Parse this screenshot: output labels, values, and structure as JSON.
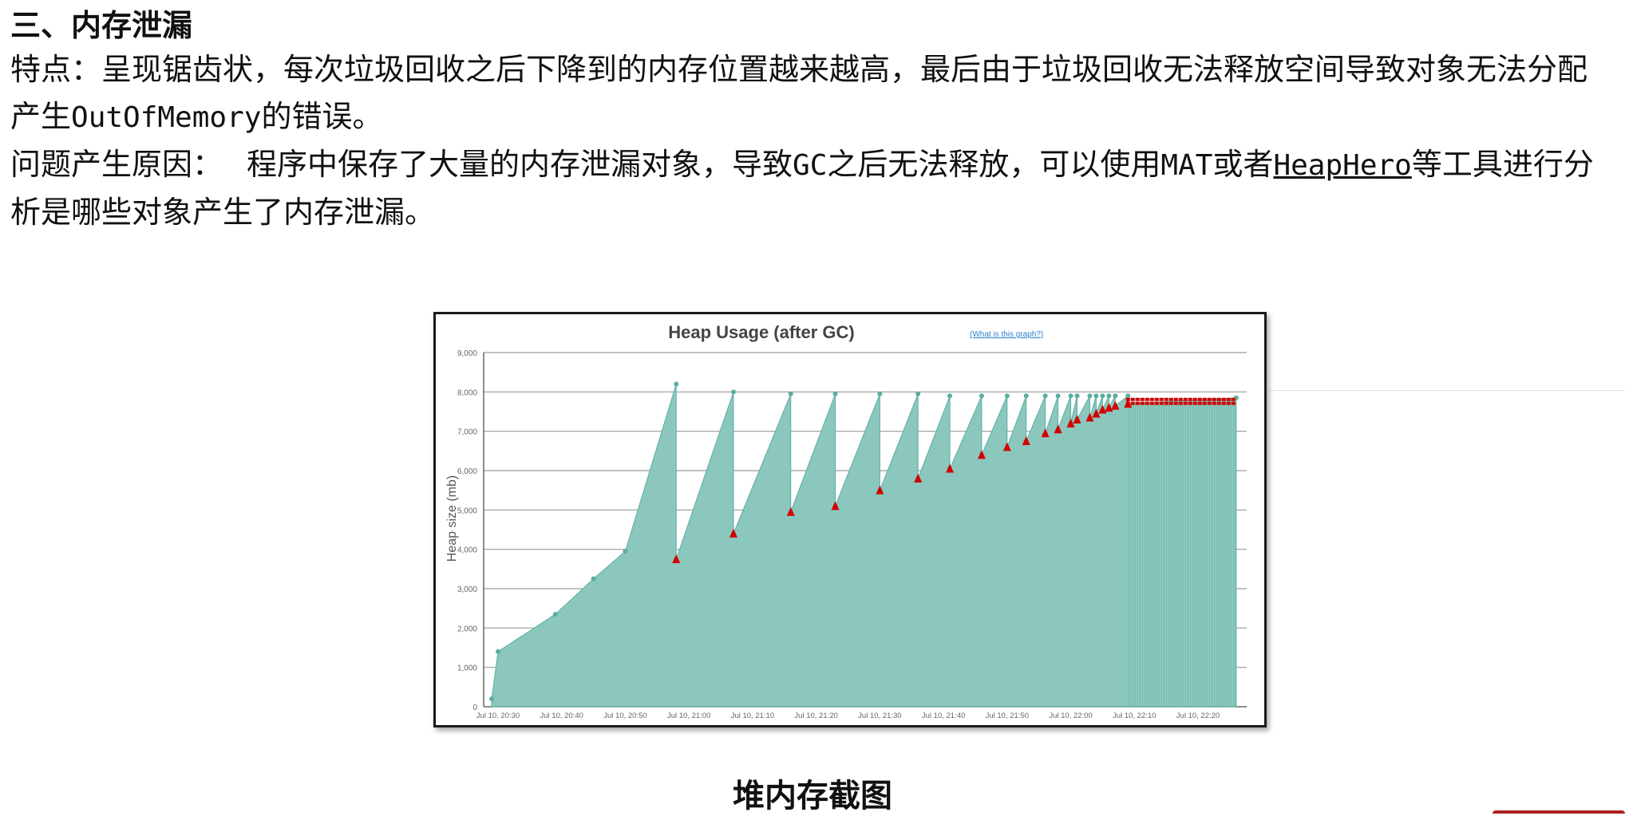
{
  "section": {
    "title": "三、内存泄漏",
    "features_line": "特点：呈现锯齿状，每次垃圾回收之后下降到的内存位置越来越高，最后由于垃圾回收无法释放空间导致对象无法分配产生",
    "features_code": "OutOfMemory",
    "features_end": "的错误。",
    "cause_label": "问题产生原因：",
    "cause_text_1": "程序中保存了大量的内存泄漏对象，导致",
    "cause_gc": "GC",
    "cause_text_2": "之后无法释放，可以使用",
    "cause_mat": "MAT",
    "cause_text_3": "或者",
    "cause_link": "HeapHero",
    "cause_text_4": "等工具进行分析是哪些对象产生了内存泄漏。"
  },
  "figure": {
    "caption": "堆内存截图",
    "colors": {
      "area": "#8bc7bd",
      "area_stroke": "#5aaea0",
      "marker": "#d40000",
      "grid": "#9a9a9a"
    }
  },
  "chart_data": {
    "type": "area",
    "title": "Heap Usage (after GC)",
    "help_link": "(What is this graph?)",
    "ylabel": "Heap size (mb)",
    "xlabel": "",
    "ylim": [
      0,
      9000
    ],
    "grid": true,
    "y_ticks": [
      "0",
      "1,000",
      "2,000",
      "3,000",
      "4,000",
      "5,000",
      "6,000",
      "7,000",
      "8,000",
      "9,000"
    ],
    "x_ticks": [
      "Jul 10, 20:30",
      "Jul 10, 20:40",
      "Jul 10, 20:50",
      "Jul 10, 21:00",
      "Jul 10, 21:10",
      "Jul 10, 21:20",
      "Jul 10, 21:30",
      "Jul 10, 21:40",
      "Jul 10, 21:50",
      "Jul 10, 22:00",
      "Jul 10, 22:10",
      "Jul 10, 22:20"
    ],
    "series": [
      {
        "name": "",
        "points": [
          [
            "Jul 10, 20:29",
            200
          ],
          [
            "Jul 10, 20:30",
            1400
          ],
          [
            "Jul 10, 20:39",
            2350
          ],
          [
            "Jul 10, 20:45",
            3250
          ],
          [
            "Jul 10, 20:50",
            3950
          ],
          [
            "Jul 10, 20:58",
            8200
          ],
          [
            "Jul 10, 20:58",
            3750
          ],
          [
            "Jul 10, 21:07",
            8000
          ],
          [
            "Jul 10, 21:07",
            4400
          ],
          [
            "Jul 10, 21:16",
            7950
          ],
          [
            "Jul 10, 21:16",
            4950
          ],
          [
            "Jul 10, 21:23",
            7950
          ],
          [
            "Jul 10, 21:23",
            5100
          ],
          [
            "Jul 10, 21:30",
            7950
          ],
          [
            "Jul 10, 21:30",
            5500
          ],
          [
            "Jul 10, 21:36",
            7950
          ],
          [
            "Jul 10, 21:36",
            5800
          ],
          [
            "Jul 10, 21:41",
            7900
          ],
          [
            "Jul 10, 21:41",
            6050
          ],
          [
            "Jul 10, 21:46",
            7900
          ],
          [
            "Jul 10, 21:46",
            6400
          ],
          [
            "Jul 10, 21:50",
            7900
          ],
          [
            "Jul 10, 21:50",
            6600
          ],
          [
            "Jul 10, 21:53",
            7900
          ],
          [
            "Jul 10, 21:53",
            6750
          ],
          [
            "Jul 10, 21:56",
            7900
          ],
          [
            "Jul 10, 21:56",
            6950
          ],
          [
            "Jul 10, 21:58",
            7900
          ],
          [
            "Jul 10, 21:58",
            7050
          ],
          [
            "Jul 10, 22:00",
            7900
          ],
          [
            "Jul 10, 22:00",
            7200
          ],
          [
            "Jul 10, 22:01",
            7900
          ],
          [
            "Jul 10, 22:01",
            7300
          ],
          [
            "Jul 10, 22:03",
            7900
          ],
          [
            "Jul 10, 22:03",
            7350
          ],
          [
            "Jul 10, 22:04",
            7900
          ],
          [
            "Jul 10, 22:04",
            7450
          ],
          [
            "Jul 10, 22:05",
            7900
          ],
          [
            "Jul 10, 22:05",
            7550
          ],
          [
            "Jul 10, 22:06",
            7900
          ],
          [
            "Jul 10, 22:06",
            7600
          ],
          [
            "Jul 10, 22:07",
            7900
          ],
          [
            "Jul 10, 22:07",
            7650
          ],
          [
            "Jul 10, 22:09",
            7900
          ],
          [
            "Jul 10, 22:09",
            7700
          ],
          [
            "Jul 10, 22:26",
            7850
          ]
        ],
        "gc_lows": [
          [
            "Jul 10, 20:58",
            3750
          ],
          [
            "Jul 10, 21:07",
            4400
          ],
          [
            "Jul 10, 21:16",
            4950
          ],
          [
            "Jul 10, 21:23",
            5100
          ],
          [
            "Jul 10, 21:30",
            5500
          ],
          [
            "Jul 10, 21:36",
            5800
          ],
          [
            "Jul 10, 21:41",
            6050
          ],
          [
            "Jul 10, 21:46",
            6400
          ],
          [
            "Jul 10, 21:50",
            6600
          ],
          [
            "Jul 10, 21:53",
            6750
          ],
          [
            "Jul 10, 21:56",
            6950
          ],
          [
            "Jul 10, 21:58",
            7050
          ],
          [
            "Jul 10, 22:00",
            7200
          ],
          [
            "Jul 10, 22:01",
            7300
          ],
          [
            "Jul 10, 22:03",
            7350
          ],
          [
            "Jul 10, 22:04",
            7450
          ],
          [
            "Jul 10, 22:05",
            7550
          ],
          [
            "Jul 10, 22:06",
            7600
          ],
          [
            "Jul 10, 22:07",
            7650
          ],
          [
            "Jul 10, 22:09",
            7700
          ]
        ],
        "plateau": {
          "from": "Jul 10, 22:09",
          "to": "Jul 10, 22:26",
          "low": 7750,
          "high": 7850
        }
      }
    ]
  }
}
